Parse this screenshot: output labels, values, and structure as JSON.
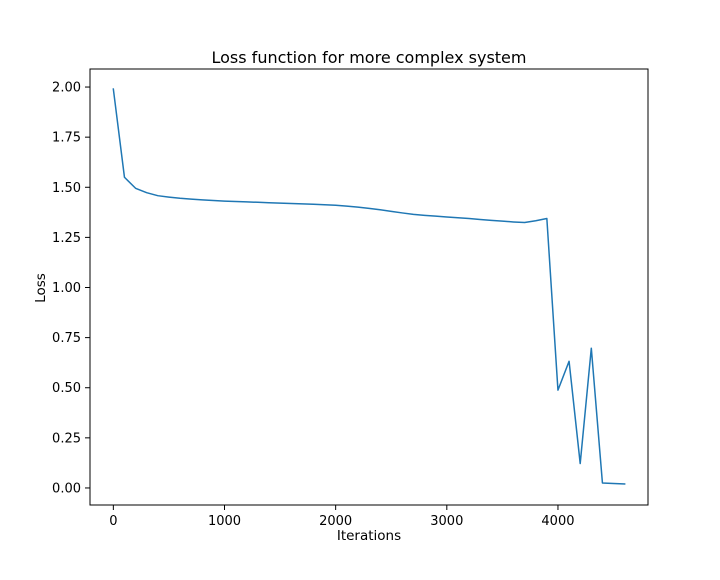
{
  "chart_data": {
    "type": "line",
    "title": "Loss function for more complex system",
    "xlabel": "Iterations",
    "ylabel": "Loss",
    "xlim": [
      -210,
      4810
    ],
    "ylim": [
      -0.085,
      2.09
    ],
    "xticks": [
      0,
      1000,
      2000,
      3000,
      4000
    ],
    "xtick_labels": [
      "0",
      "1000",
      "2000",
      "3000",
      "4000"
    ],
    "yticks": [
      0.0,
      0.25,
      0.5,
      0.75,
      1.0,
      1.25,
      1.5,
      1.75,
      2.0
    ],
    "ytick_labels": [
      "0.00",
      "0.25",
      "0.50",
      "0.75",
      "1.00",
      "1.25",
      "1.50",
      "1.75",
      "2.00"
    ],
    "grid": false,
    "color": "#1f77b4",
    "x": [
      0,
      100,
      200,
      300,
      400,
      500,
      600,
      700,
      800,
      900,
      1000,
      1100,
      1200,
      1300,
      1400,
      1500,
      1600,
      1700,
      1800,
      1900,
      2000,
      2100,
      2200,
      2300,
      2400,
      2500,
      2600,
      2700,
      2800,
      2900,
      3000,
      3100,
      3200,
      3300,
      3400,
      3500,
      3600,
      3700,
      3800,
      3900,
      4000,
      4100,
      4200,
      4300,
      4400,
      4500,
      4600
    ],
    "y": [
      1.99,
      1.55,
      1.495,
      1.473,
      1.458,
      1.451,
      1.445,
      1.441,
      1.437,
      1.434,
      1.431,
      1.429,
      1.427,
      1.425,
      1.423,
      1.421,
      1.419,
      1.417,
      1.415,
      1.413,
      1.41,
      1.406,
      1.401,
      1.395,
      1.388,
      1.38,
      1.372,
      1.365,
      1.36,
      1.356,
      1.352,
      1.348,
      1.344,
      1.339,
      1.335,
      1.331,
      1.327,
      1.324,
      1.333,
      1.344,
      0.488,
      0.632,
      0.122,
      0.697,
      0.025,
      0.022,
      0.02
    ]
  }
}
